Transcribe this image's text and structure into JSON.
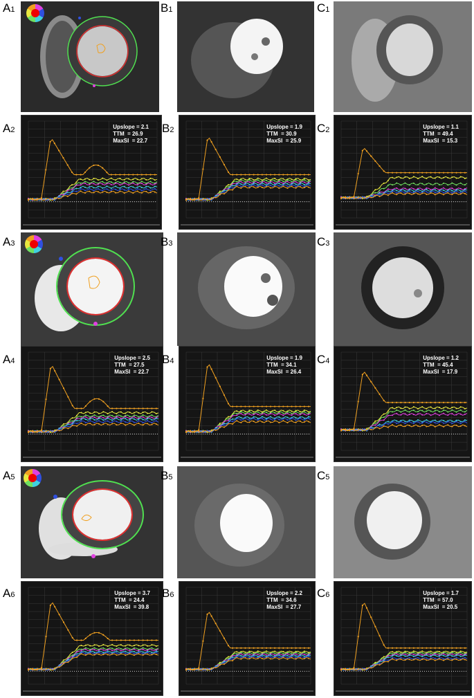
{
  "panels": {
    "A1": {
      "letter": "A",
      "num": "1"
    },
    "B1": {
      "letter": "B",
      "num": "1"
    },
    "C1": {
      "letter": "C",
      "num": "1"
    },
    "A2": {
      "letter": "A",
      "num": "2",
      "upslope": "Upslope = 2.1",
      "ttm": "TTM  = 26.9",
      "maxsi": "MaxSI  = 22.7"
    },
    "B2": {
      "letter": "B",
      "num": "2",
      "upslope": "Upslope = 1.9",
      "ttm": "TTM  = 30.9",
      "maxsi": "MaxSI  = 25.9"
    },
    "C2": {
      "letter": "C",
      "num": "2",
      "upslope": "Upslope = 1.1",
      "ttm": "TTM  = 49.4",
      "maxsi": "MaxSI  = 15.3"
    },
    "A3": {
      "letter": "A",
      "num": "3"
    },
    "B3": {
      "letter": "B",
      "num": "3"
    },
    "C3": {
      "letter": "C",
      "num": "3"
    },
    "A4": {
      "letter": "A",
      "num": "4",
      "upslope": "Upslope = 2.5",
      "ttm": "TTM  = 27.5",
      "maxsi": "MaxSI  = 22.7"
    },
    "B4": {
      "letter": "B",
      "num": "4",
      "upslope": "Upslope = 1.9",
      "ttm": "TTM  = 34.1",
      "maxsi": "MaxSI  = 26.4"
    },
    "C4": {
      "letter": "C",
      "num": "4",
      "upslope": "Upslope = 1.2",
      "ttm": "TTM  = 45.4",
      "maxsi": "MaxSI  = 17.9"
    },
    "A5": {
      "letter": "A",
      "num": "5"
    },
    "B5": {
      "letter": "B",
      "num": "5"
    },
    "C5": {
      "letter": "C",
      "num": "5"
    },
    "A6": {
      "letter": "A",
      "num": "6",
      "upslope": "Upslope = 3.7",
      "ttm": "TTM  = 24.4",
      "maxsi": "MaxSI  = 39.8"
    },
    "B6": {
      "letter": "B",
      "num": "6",
      "upslope": "Upslope = 2.2",
      "ttm": "TTM  = 34.6",
      "maxsi": "MaxSI  = 27.7"
    },
    "C6": {
      "letter": "C",
      "num": "6",
      "upslope": "Upslope = 1.7",
      "ttm": "TTM  = 57.0",
      "maxsi": "MaxSI  = 20.5"
    }
  },
  "colors": {
    "aif": "#f0a020",
    "yellow": "#e8e840",
    "green": "#70e060",
    "magenta": "#e040e0",
    "cyan": "#40d0e0",
    "blue": "#3050e0",
    "contour_outer": "#50e050",
    "contour_inner": "#e03030"
  },
  "chart_data": [
    {
      "id": "A2",
      "type": "line",
      "peak": 80,
      "base": 3,
      "plateau": [
        28,
        24,
        22,
        18,
        15,
        12
      ],
      "second_bump": true,
      "xlim": [
        0,
        80
      ],
      "ylim": [
        -20,
        100
      ]
    },
    {
      "id": "B2",
      "type": "line",
      "peak": 82,
      "base": 3,
      "plateau": [
        28,
        26,
        24,
        22,
        20,
        18
      ],
      "second_bump": false,
      "xlim": [
        0,
        80
      ],
      "ylim": [
        -20,
        100
      ]
    },
    {
      "id": "C2",
      "type": "line",
      "peak": 68,
      "base": 5,
      "plateau": [
        30,
        22,
        16,
        14,
        12,
        10
      ],
      "second_bump": false,
      "xlim": [
        0,
        80
      ],
      "ylim": [
        -20,
        100
      ]
    },
    {
      "id": "A4",
      "type": "line",
      "peak": 86,
      "base": 3,
      "plateau": [
        26,
        22,
        20,
        18,
        15,
        12
      ],
      "second_bump": true,
      "xlim": [
        0,
        80
      ],
      "ylim": [
        -20,
        100
      ]
    },
    {
      "id": "B4",
      "type": "line",
      "peak": 88,
      "base": 3,
      "plateau": [
        28,
        26,
        24,
        20,
        18,
        15
      ],
      "second_bump": false,
      "xlim": [
        0,
        80
      ],
      "ylim": [
        -20,
        100
      ]
    },
    {
      "id": "C4",
      "type": "line",
      "peak": 78,
      "base": 5,
      "plateau": [
        32,
        28,
        24,
        16,
        14,
        10
      ],
      "second_bump": false,
      "xlim": [
        0,
        80
      ],
      "ylim": [
        -20,
        100
      ]
    },
    {
      "id": "A6",
      "type": "line",
      "peak": 110,
      "base": 3,
      "plateau": [
        40,
        35,
        33,
        30,
        28,
        26
      ],
      "second_bump": true,
      "xlim": [
        0,
        80
      ],
      "ylim": [
        -20,
        130
      ]
    },
    {
      "id": "B6",
      "type": "line",
      "peak": 95,
      "base": 3,
      "plateau": [
        30,
        28,
        26,
        24,
        22,
        20
      ],
      "second_bump": false,
      "xlim": [
        0,
        80
      ],
      "ylim": [
        -20,
        130
      ]
    },
    {
      "id": "C6",
      "type": "line",
      "peak": 110,
      "base": 3,
      "plateau": [
        30,
        28,
        26,
        24,
        20,
        18
      ],
      "second_bump": false,
      "xlim": [
        0,
        80
      ],
      "ylim": [
        -20,
        130
      ]
    }
  ]
}
